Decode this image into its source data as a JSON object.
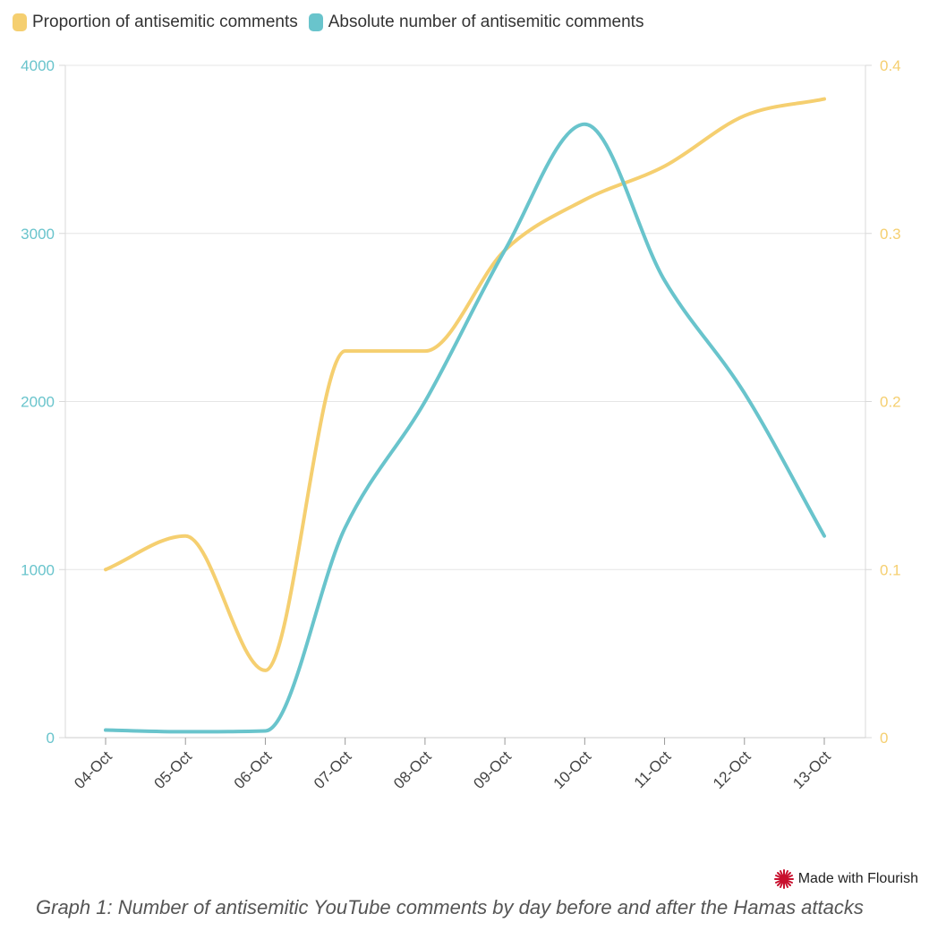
{
  "chart_data": {
    "type": "line",
    "categories": [
      "04-Oct",
      "05-Oct",
      "06-Oct",
      "07-Oct",
      "08-Oct",
      "09-Oct",
      "10-Oct",
      "11-Oct",
      "12-Oct",
      "13-Oct"
    ],
    "series": [
      {
        "name": "Proportion of antisemitic comments",
        "axis": "right",
        "color": "#f5cf70",
        "values": [
          0.1,
          0.12,
          0.04,
          0.23,
          0.23,
          0.29,
          0.32,
          0.34,
          0.37,
          0.38
        ]
      },
      {
        "name": "Absolute number of antisemitic comments",
        "axis": "left",
        "color": "#69c4cc",
        "values": [
          45,
          35,
          40,
          1250,
          2000,
          2900,
          3650,
          2720,
          2050,
          1200
        ]
      }
    ],
    "left_axis": {
      "min": 0,
      "max": 4000,
      "ticks": [
        "0",
        "1000",
        "2000",
        "3000",
        "4000"
      ],
      "color": "#69c4cc"
    },
    "right_axis": {
      "min": 0,
      "max": 0.4,
      "ticks": [
        "0",
        "0.1",
        "0.2",
        "0.3",
        "0.4"
      ],
      "color": "#f5cf70"
    },
    "grid": true,
    "legend_position": "top-left",
    "title": ""
  },
  "legend": {
    "items": [
      {
        "label": "Proportion of antisemitic comments",
        "color": "#f5cf70"
      },
      {
        "label": "Absolute number of antisemitic comments",
        "color": "#69c4cc"
      }
    ]
  },
  "footer": {
    "credit": "Made with Flourish",
    "caption": "Graph 1: Number of antisemitic YouTube comments by day before and after the Hamas attacks"
  }
}
